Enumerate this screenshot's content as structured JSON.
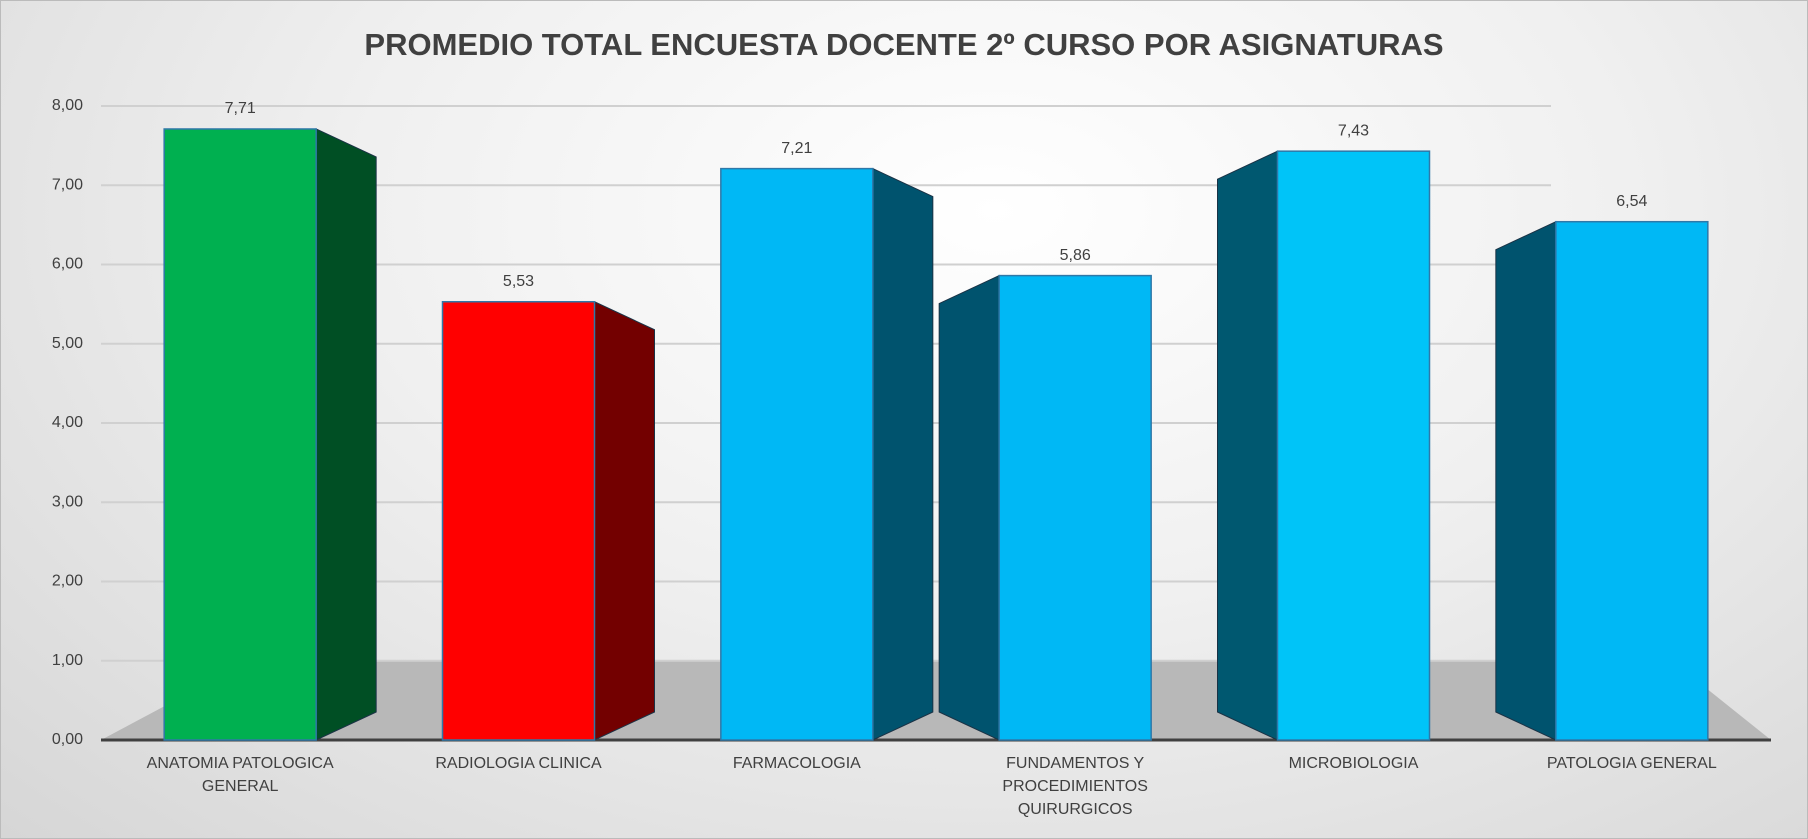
{
  "chart_data": {
    "type": "bar",
    "title": "PROMEDIO TOTAL ENCUESTA DOCENTE 2º CURSO POR ASIGNATURAS",
    "categories": [
      "ANATOMIA PATOLOGICA GENERAL",
      "RADIOLOGIA CLINICA",
      "FARMACOLOGIA",
      "FUNDAMENTOS Y PROCEDIMIENTOS QUIRURGICOS",
      "MICROBIOLOGIA",
      "PATOLOGIA GENERAL"
    ],
    "values": [
      7.71,
      5.53,
      7.21,
      5.86,
      7.43,
      6.54
    ],
    "value_labels": [
      "7,71",
      "5,53",
      "7,21",
      "5,86",
      "7,43",
      "6,54"
    ],
    "colors": [
      "#00b050",
      "#ff0000",
      "#00b8f5",
      "#00b8f5",
      "#00c4f8",
      "#00b8f5"
    ],
    "ylim": [
      0,
      8
    ],
    "yticks": [
      {
        "value": 0,
        "label": "0,00"
      },
      {
        "value": 1,
        "label": "1,00"
      },
      {
        "value": 2,
        "label": "2,00"
      },
      {
        "value": 3,
        "label": "3,00"
      },
      {
        "value": 4,
        "label": "4,00"
      },
      {
        "value": 5,
        "label": "5,00"
      },
      {
        "value": 6,
        "label": "6,00"
      },
      {
        "value": 7,
        "label": "7,00"
      },
      {
        "value": 8,
        "label": "8,00"
      }
    ],
    "grid": true
  }
}
